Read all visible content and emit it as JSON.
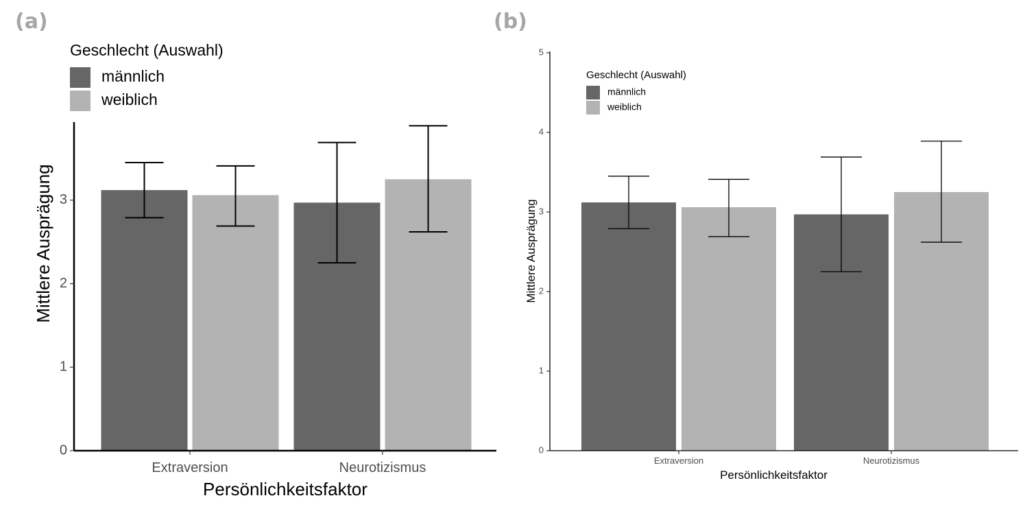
{
  "panels": {
    "a_label": "(a)",
    "b_label": "(b)"
  },
  "colors": {
    "männlich": "#666666",
    "weiblich": "#b3b3b3",
    "axis": "#000000",
    "tick_text": "#4d4d4d",
    "panel_label": "#a6a6a6"
  },
  "chart_data": [
    {
      "type": "bar",
      "panel": "(a)",
      "categories": [
        "Extraversion",
        "Neurotizismus"
      ],
      "series": [
        {
          "name": "männlich",
          "values": [
            3.12,
            2.97
          ],
          "err_low": [
            2.79,
            2.25
          ],
          "err_high": [
            3.45,
            3.69
          ]
        },
        {
          "name": "weiblich",
          "values": [
            3.06,
            3.25
          ],
          "err_low": [
            2.69,
            2.62
          ],
          "err_high": [
            3.41,
            3.89
          ]
        }
      ],
      "xlabel": "Persönlichkeitsfaktor",
      "ylabel": "Mittlere Ausprägung",
      "legend_title": "Geschlecht (Auswahl)",
      "legend_position": "top-left",
      "yticks": [
        "0",
        "1",
        "2",
        "3"
      ],
      "ylim": [
        0,
        4
      ],
      "grid": false
    },
    {
      "type": "bar",
      "panel": "(b)",
      "categories": [
        "Extraversion",
        "Neurotizismus"
      ],
      "series": [
        {
          "name": "männlich",
          "values": [
            3.12,
            2.97
          ],
          "err_low": [
            2.79,
            2.25
          ],
          "err_high": [
            3.45,
            3.69
          ]
        },
        {
          "name": "weiblich",
          "values": [
            3.06,
            3.25
          ],
          "err_low": [
            2.69,
            2.62
          ],
          "err_high": [
            3.41,
            3.89
          ]
        }
      ],
      "xlabel": "Persönlichkeitsfaktor",
      "ylabel": "Mittlere Ausprägung",
      "legend_title": "Geschlecht (Auswahl)",
      "legend_position": "top-left",
      "yticks": [
        "0",
        "1",
        "2",
        "3",
        "4",
        "5"
      ],
      "ylim": [
        0,
        5
      ],
      "grid": false
    }
  ]
}
